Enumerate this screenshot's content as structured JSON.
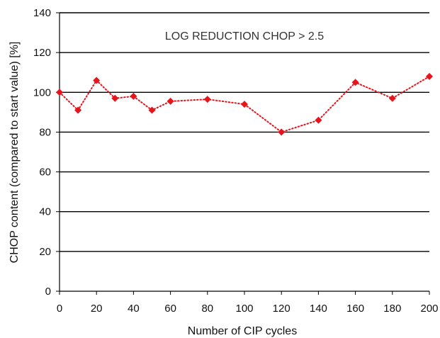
{
  "chart_data": {
    "type": "line",
    "title": "",
    "xlabel": "Number of CIP cycles",
    "ylabel": "CHOP content (compared to start value) [%]",
    "annotation": "LOG REDUCTION CHOP > 2.5",
    "xlim": [
      0,
      200
    ],
    "ylim": [
      0,
      140
    ],
    "xticks": [
      0,
      20,
      40,
      60,
      80,
      100,
      120,
      140,
      160,
      180,
      200
    ],
    "yticks": [
      0,
      20,
      40,
      60,
      80,
      100,
      120,
      140
    ],
    "grid": "horizontal",
    "series": [
      {
        "x": [
          0,
          10,
          20,
          30,
          40,
          50,
          60,
          80,
          100,
          120,
          140,
          160,
          180,
          200
        ],
        "y": [
          100,
          91,
          106,
          97,
          98,
          91,
          95.5,
          96.5,
          94,
          80,
          86,
          105,
          97,
          108
        ],
        "color": "#e8141b",
        "line_style": "dotted",
        "marker": "diamond"
      }
    ]
  }
}
